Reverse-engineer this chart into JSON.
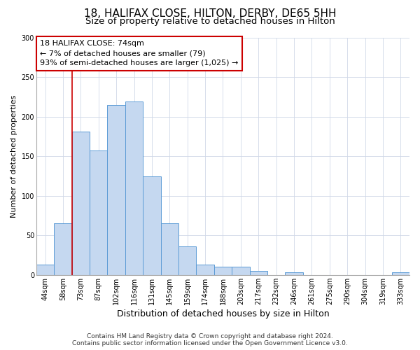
{
  "title": "18, HALIFAX CLOSE, HILTON, DERBY, DE65 5HH",
  "subtitle": "Size of property relative to detached houses in Hilton",
  "xlabel": "Distribution of detached houses by size in Hilton",
  "ylabel": "Number of detached properties",
  "bin_labels": [
    "44sqm",
    "58sqm",
    "73sqm",
    "87sqm",
    "102sqm",
    "116sqm",
    "131sqm",
    "145sqm",
    "159sqm",
    "174sqm",
    "188sqm",
    "203sqm",
    "217sqm",
    "232sqm",
    "246sqm",
    "261sqm",
    "275sqm",
    "290sqm",
    "304sqm",
    "319sqm",
    "333sqm"
  ],
  "bar_values": [
    13,
    65,
    181,
    157,
    215,
    219,
    125,
    65,
    36,
    13,
    10,
    10,
    5,
    0,
    3,
    0,
    0,
    0,
    0,
    0,
    3
  ],
  "bar_color": "#c5d8f0",
  "bar_edge_color": "#5b9bd5",
  "vline_x_index": 2,
  "vline_color": "#cc0000",
  "ylim": [
    0,
    300
  ],
  "annotation_line1": "18 HALIFAX CLOSE: 74sqm",
  "annotation_line2": "← 7% of detached houses are smaller (79)",
  "annotation_line3": "93% of semi-detached houses are larger (1,025) →",
  "annotation_box_color": "#cc0000",
  "footer_line1": "Contains HM Land Registry data © Crown copyright and database right 2024.",
  "footer_line2": "Contains public sector information licensed under the Open Government Licence v3.0.",
  "title_fontsize": 11,
  "subtitle_fontsize": 9.5,
  "xlabel_fontsize": 9,
  "ylabel_fontsize": 8,
  "tick_fontsize": 7,
  "footer_fontsize": 6.5,
  "annotation_fontsize": 8,
  "grid_color": "#d0d8e8",
  "background_color": "#ffffff"
}
